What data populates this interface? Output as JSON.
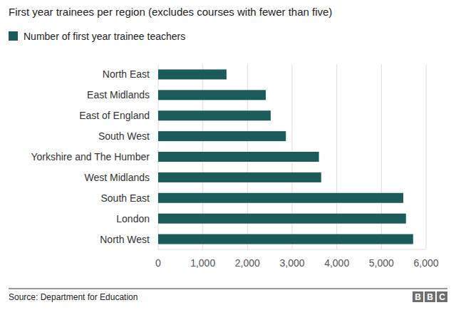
{
  "chart_data": {
    "type": "bar",
    "orientation": "horizontal",
    "title": "First year trainees per region (excludes courses with fewer than five)",
    "categories": [
      "North East",
      "East Midlands",
      "East of England",
      "South West",
      "Yorkshire and The Humber",
      "West Midlands",
      "South East",
      "London",
      "North West"
    ],
    "series": [
      {
        "name": "Number of first year trainee teachers",
        "color": "#1b5c5b",
        "values": [
          1530,
          2410,
          2520,
          2860,
          3600,
          3650,
          5490,
          5550,
          5710
        ]
      }
    ],
    "xlim": [
      0,
      6000
    ],
    "xticks": [
      0,
      {
        "value": 1000,
        "label": "1,000"
      },
      {
        "value": 2000,
        "label": "2,000"
      },
      {
        "value": 3000,
        "label": "3,000"
      },
      {
        "value": 4000,
        "label": "4,000"
      },
      {
        "value": 5000,
        "label": "5,000"
      },
      {
        "value": 6000,
        "label": "6,000"
      }
    ],
    "grid": true,
    "legend": "top-left",
    "source": "Source: Department for Education",
    "logo": "BBC"
  }
}
